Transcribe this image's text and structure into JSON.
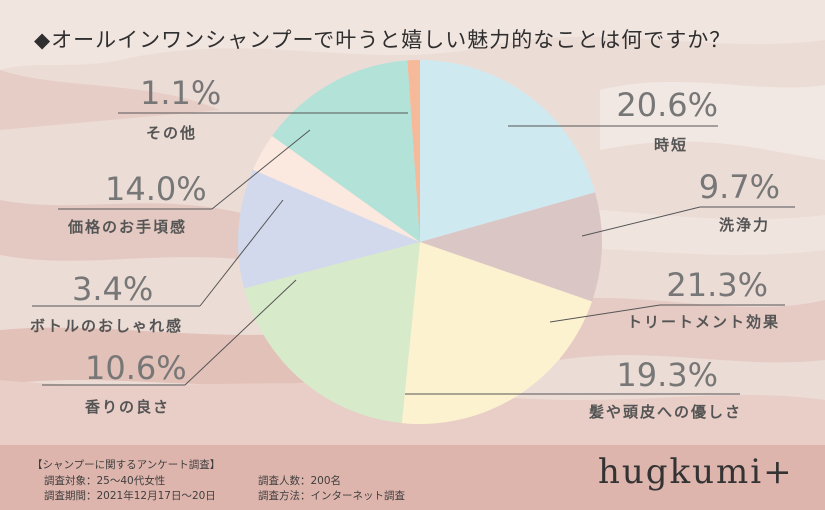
{
  "title": "◆オールインワンシャンプーで叶うと嬉しい魅力的なことは何ですか？",
  "chart_data": {
    "type": "pie",
    "categories": [
      "時短",
      "洗浄力",
      "トリートメント効果",
      "髪や頭皮への優しさ",
      "香りの良さ",
      "ボトルのおしゃれ感",
      "価格のお手頃感",
      "その他"
    ],
    "values": [
      20.6,
      9.7,
      21.3,
      19.3,
      10.6,
      3.4,
      14.0,
      1.1
    ],
    "value_labels": [
      "20.6%",
      "9.7%",
      "21.3%",
      "19.3%",
      "10.6%",
      "3.4%",
      "14.0%",
      "1.1%"
    ],
    "colors": [
      "#cfe9f0",
      "#dbc6c6",
      "#fdf2cf",
      "#d7eac9",
      "#d2d9ec",
      "#fbe8df",
      "#b3e2d8",
      "#f6b999"
    ],
    "start_angle_deg": 0,
    "direction": "clockwise"
  },
  "footer": {
    "heading": "【シャンプーに関するアンケート調査】",
    "target": "調査対象：25〜40代女性",
    "period": "調査期間：2021年12月17日〜20日",
    "count": "調査人数：200名",
    "method": "調査方法：インターネット調査"
  },
  "logo": "hugkumi+"
}
